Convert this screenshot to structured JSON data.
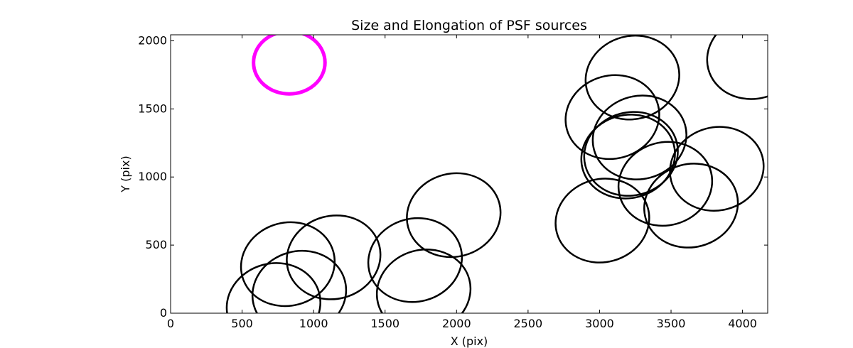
{
  "chart_data": {
    "type": "scatter",
    "title": "Size and Elongation of PSF sources",
    "xlabel": "X (pix)",
    "ylabel": "Y (pix)",
    "xlim": [
      0,
      4176
    ],
    "ylim": [
      0,
      2044
    ],
    "xticks": [
      0,
      500,
      1000,
      1500,
      2000,
      2500,
      3000,
      3500,
      4000
    ],
    "yticks": [
      0,
      500,
      1000,
      1500,
      2000
    ],
    "grid": false,
    "marker": "ellipse",
    "colors": {
      "highlight": "#ff00ff",
      "default": "#000000"
    },
    "series": [
      {
        "color": "#ff00ff",
        "ellipses": [
          {
            "x": 830,
            "y": 1840,
            "width": 500,
            "height": 460,
            "angle": 0
          }
        ]
      },
      {
        "color": "#000000",
        "ellipses": [
          {
            "x": 720,
            "y": 60,
            "width": 660,
            "height": 610,
            "angle": -15
          },
          {
            "x": 820,
            "y": 360,
            "width": 660,
            "height": 610,
            "angle": -15
          },
          {
            "x": 900,
            "y": 150,
            "width": 660,
            "height": 610,
            "angle": -15
          },
          {
            "x": 1140,
            "y": 410,
            "width": 660,
            "height": 610,
            "angle": -15
          },
          {
            "x": 1710,
            "y": 390,
            "width": 660,
            "height": 610,
            "angle": -15
          },
          {
            "x": 1770,
            "y": 160,
            "width": 660,
            "height": 610,
            "angle": -15
          },
          {
            "x": 1980,
            "y": 720,
            "width": 660,
            "height": 610,
            "angle": -15
          },
          {
            "x": 3020,
            "y": 680,
            "width": 660,
            "height": 610,
            "angle": -15
          },
          {
            "x": 3090,
            "y": 1440,
            "width": 660,
            "height": 610,
            "angle": -15
          },
          {
            "x": 3200,
            "y": 1150,
            "width": 660,
            "height": 610,
            "angle": -15
          },
          {
            "x": 3220,
            "y": 1170,
            "width": 660,
            "height": 610,
            "angle": -15
          },
          {
            "x": 3230,
            "y": 1730,
            "width": 660,
            "height": 610,
            "angle": -15
          },
          {
            "x": 3280,
            "y": 1290,
            "width": 660,
            "height": 610,
            "angle": -15
          },
          {
            "x": 3460,
            "y": 950,
            "width": 660,
            "height": 610,
            "angle": -15
          },
          {
            "x": 3640,
            "y": 790,
            "width": 660,
            "height": 610,
            "angle": -15
          },
          {
            "x": 3820,
            "y": 1060,
            "width": 660,
            "height": 610,
            "angle": -15
          },
          {
            "x": 4080,
            "y": 1880,
            "width": 660,
            "height": 610,
            "angle": -15
          }
        ]
      }
    ]
  }
}
